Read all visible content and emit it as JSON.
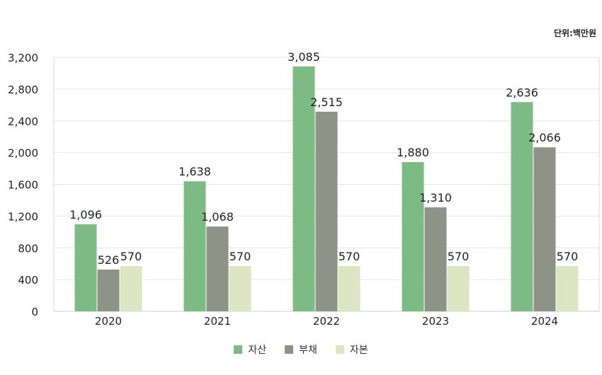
{
  "unit_label": "단위:백만원",
  "colors": {
    "asset": "#7dbb84",
    "liability": "#8f9287",
    "equity": "#dde5c3"
  },
  "chart_data": {
    "type": "bar",
    "categories": [
      "2020",
      "2021",
      "2022",
      "2023",
      "2024"
    ],
    "series": [
      {
        "name": "자산",
        "values": [
          1096,
          1638,
          3085,
          1880,
          2636
        ],
        "color": "#7dbb84"
      },
      {
        "name": "부채",
        "values": [
          526,
          1068,
          2515,
          1310,
          2066
        ],
        "color": "#8f9287"
      },
      {
        "name": "자본",
        "values": [
          570,
          570,
          570,
          570,
          570
        ],
        "color": "#dde5c3"
      }
    ],
    "yticks": [
      "0",
      "400",
      "800",
      "1,200",
      "1,600",
      "2,000",
      "2,400",
      "2,800",
      "3,200"
    ],
    "ylim": [
      0,
      3200
    ],
    "grid": true,
    "legend_position": "bottom"
  }
}
